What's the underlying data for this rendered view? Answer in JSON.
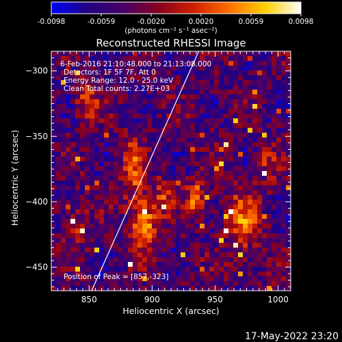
{
  "chart_data": {
    "type": "heatmap",
    "title": "Reconstructed RHESSI Image",
    "colorbar": {
      "ticks": [
        "-0.0098",
        "-0.0059",
        "-0.0020",
        "0.0020",
        "0.0059",
        "0.0098"
      ],
      "range": [
        -0.0098,
        0.0098
      ],
      "units_label": "(photons cm⁻² s⁻¹ asec⁻²)",
      "colormap": [
        "#0000ff",
        "#200080",
        "#480068",
        "#880020",
        "#d02000",
        "#ff7000",
        "#ffd000",
        "#ffffff"
      ]
    },
    "xlabel": "Heliocentric X (arcsec)",
    "ylabel": "Heliocentric Y (arcsec)",
    "xlim": [
      820,
      1010
    ],
    "ylim": [
      -468,
      -285
    ],
    "xticks": [
      850,
      900,
      950,
      1000
    ],
    "yticks": [
      -300,
      -350,
      -400,
      -450
    ],
    "annotations": [
      "6-Feb-2016 21:10:48.000 to 21:13:08.000",
      "Detectors: 1F 5F 7F, Att 0",
      "Energy Range: 12.0 - 25.0 keV",
      "Clean    Total counts: 2.27E+03",
      "Position of Peak = [857,-323]"
    ],
    "limb_line": {
      "x": [
        852,
        937
      ],
      "y": [
        -468,
        -285
      ]
    },
    "peak": [
      857,
      -323
    ],
    "sources": [
      {
        "x": 893,
        "y": -418,
        "sx": 7,
        "sy": 14,
        "amp": 1.0
      },
      {
        "x": 885,
        "y": -375,
        "sx": 7,
        "sy": 18,
        "amp": 0.55
      },
      {
        "x": 910,
        "y": -395,
        "sx": 6,
        "sy": 10,
        "amp": 0.5
      },
      {
        "x": 935,
        "y": -397,
        "sx": 5,
        "sy": 9,
        "amp": 0.8
      },
      {
        "x": 972,
        "y": -415,
        "sx": 9,
        "sy": 18,
        "amp": 0.7
      },
      {
        "x": 992,
        "y": -370,
        "sx": 6,
        "sy": 10,
        "amp": 0.4
      },
      {
        "x": 848,
        "y": -323,
        "sx": 6,
        "sy": 10,
        "amp": 0.6
      },
      {
        "x": 840,
        "y": -420,
        "sx": 6,
        "sy": 12,
        "amp": 0.45
      }
    ]
  },
  "footer": {
    "timestamp": "17-May-2022 23:20"
  }
}
